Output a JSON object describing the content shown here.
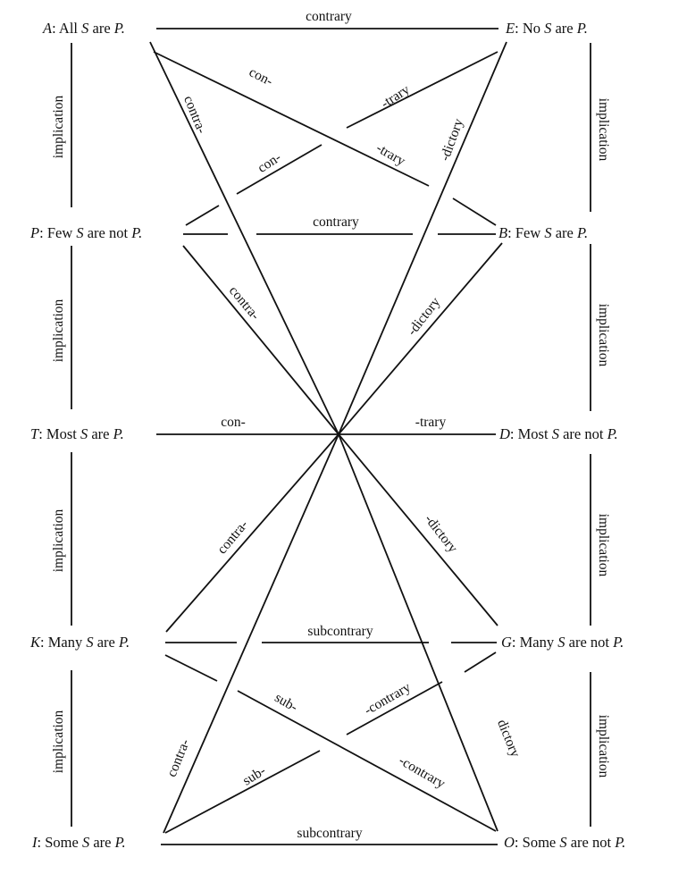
{
  "propositions": {
    "A": {
      "letter": "A",
      "text": "All S are P."
    },
    "E": {
      "letter": "E",
      "text": "No S are P."
    },
    "P": {
      "letter": "P",
      "text": "Few S are not P."
    },
    "B": {
      "letter": "B",
      "text": "Few S are P."
    },
    "T": {
      "letter": "T",
      "text": "Most S are P."
    },
    "D": {
      "letter": "D",
      "text": "Most S are not P."
    },
    "K": {
      "letter": "K",
      "text": "Many S are P."
    },
    "G": {
      "letter": "G",
      "text": "Many S are not P."
    },
    "I": {
      "letter": "I",
      "text": "Some S are P."
    },
    "O": {
      "letter": "O",
      "text": "Some S are not P."
    }
  },
  "relations": {
    "ae": "contrary",
    "pb": "contrary",
    "td_left": "con-",
    "td_right": "-trary",
    "kg": "subcontrary",
    "io": "subcontrary",
    "implication": "implication",
    "ab_con": "con-",
    "ab_trary": "-trary",
    "ep_trary": "-trary",
    "ep_con": "con-",
    "a_contra": "contra-",
    "e_dictory": "-dictory",
    "p_contra": "contra-",
    "b_dictory": "-dictory",
    "k_contra": "contra-",
    "g_dictory": "-dictory",
    "i_contra": "contra-",
    "o_dictory": "dictory",
    "ko_sub": "sub-",
    "ko_contrary": "-contrary",
    "gi_contrary": "-contrary",
    "gi_sub": "sub-"
  }
}
